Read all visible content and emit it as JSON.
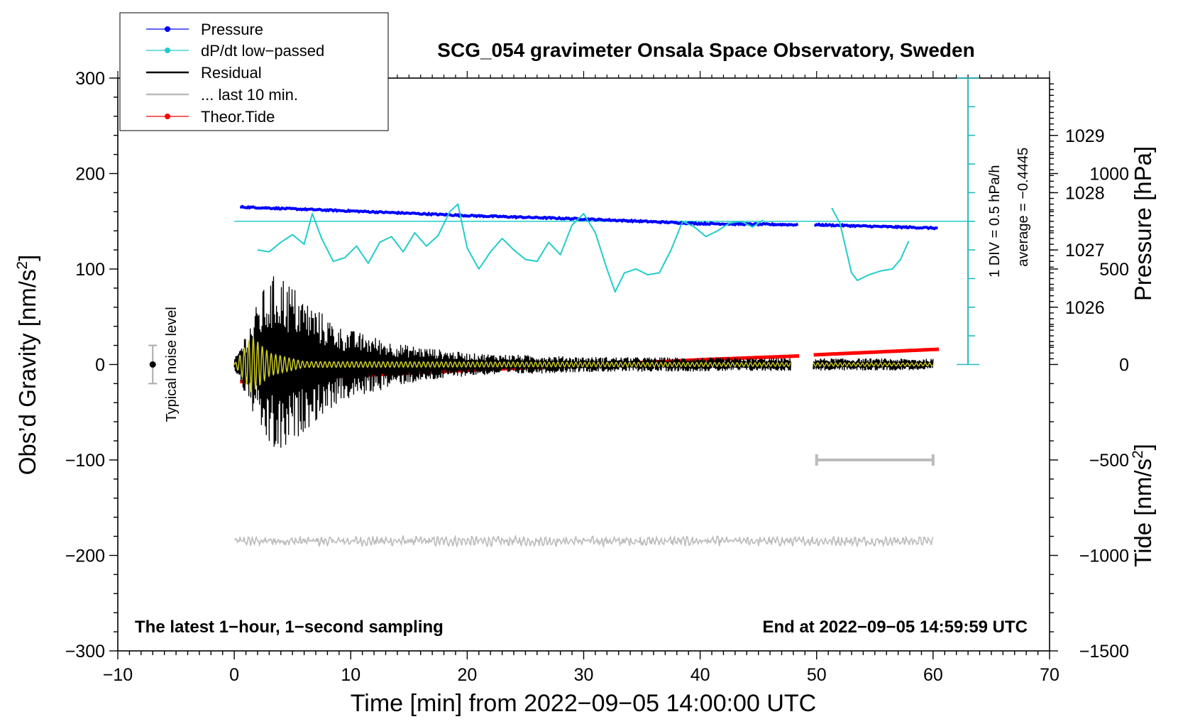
{
  "chart_data": {
    "type": "line",
    "title": "SCG_054 gravimeter Onsala Space Observatory, Sweden",
    "xlabel": "Time [min] from 2022−09−05 14:00:00 UTC",
    "ylabel_left_main": "Obs’d Gravity [nm/s",
    "ylabel_left_sup": "2",
    "ylabel_left_end": "]",
    "ylabel_right_pressure": "Pressure [hPa]",
    "ylabel_right_tide_main": "Tide [nm/s",
    "ylabel_right_tide_sup": "2",
    "ylabel_right_tide_end": "]",
    "xlim": [
      -10,
      70
    ],
    "ylim_left": [
      -300,
      300
    ],
    "ylim_tide": [
      -1500,
      1500
    ],
    "x_ticks": [
      {
        "value": -10,
        "label": "−10"
      },
      {
        "value": 0,
        "label": "0"
      },
      {
        "value": 10,
        "label": "10"
      },
      {
        "value": 20,
        "label": "20"
      },
      {
        "value": 30,
        "label": "30"
      },
      {
        "value": 40,
        "label": "40"
      },
      {
        "value": 50,
        "label": "50"
      },
      {
        "value": 60,
        "label": "60"
      },
      {
        "value": 70,
        "label": "70"
      }
    ],
    "y_ticks_left": [
      {
        "value": 300,
        "label": "300"
      },
      {
        "value": 200,
        "label": "200"
      },
      {
        "value": 100,
        "label": "100"
      },
      {
        "value": 0,
        "label": "0"
      },
      {
        "value": -100,
        "label": "−100"
      },
      {
        "value": -200,
        "label": "−200"
      },
      {
        "value": -300,
        "label": "−300"
      }
    ],
    "pressure_ticks": [
      {
        "value": 1029,
        "label": "1029"
      },
      {
        "value": 1028,
        "label": "1028"
      },
      {
        "value": 1027,
        "label": "1027"
      },
      {
        "value": 1026,
        "label": "1026"
      }
    ],
    "pressure_axis_map": {
      "hpa_at_gravity_0": 1025,
      "hpa_per_100_gravity": 1.667
    },
    "tide_ticks": [
      {
        "value": 1000,
        "label": "1000"
      },
      {
        "value": 500,
        "label": "500"
      },
      {
        "value": 0,
        "label": "0"
      },
      {
        "value": -500,
        "label": "−500"
      },
      {
        "value": -1000,
        "label": "−1000"
      },
      {
        "value": -1500,
        "label": "−1500"
      }
    ],
    "legend": {
      "position": "top-left",
      "entries": [
        {
          "label": "Pressure",
          "color": "#0000ff",
          "marker": "dot"
        },
        {
          "label": "dP/dt low−passed",
          "color": "#22cccc",
          "marker": "dot"
        },
        {
          "label": "Residual",
          "color": "#000000",
          "marker": "none"
        },
        {
          "label": "... last 10 min.",
          "color": "#bbbbbb",
          "marker": "none"
        },
        {
          "label": "Theor.Tide",
          "color": "#ff0000",
          "marker": "dot"
        }
      ]
    },
    "series": [
      {
        "name": "Pressure",
        "color": "#0000ff",
        "unit": "hPa",
        "gap": [
          48.5,
          49.8
        ],
        "x": [
          0.5,
          10,
          20,
          30,
          40,
          48.5,
          49.8,
          60.5
        ],
        "values": [
          1027.75,
          1027.68,
          1027.6,
          1027.54,
          1027.46,
          1027.44,
          1027.44,
          1027.38
        ]
      },
      {
        "name": "dP/dt low−passed",
        "color": "#22cccc",
        "axis": "gravity",
        "segments": [
          {
            "x": [
              2,
              3,
              4,
              5,
              6,
              6.7,
              7.5,
              8.5,
              9.5,
              10.5,
              11.5,
              12.5,
              13.5,
              14.5,
              15.5,
              16.5,
              17.5,
              18.5,
              19.2,
              20,
              21,
              22,
              23,
              24,
              25,
              26,
              27,
              28,
              29,
              30,
              31,
              32,
              32.7,
              33.5,
              34.5,
              35.5,
              36.5,
              37.5,
              38.5,
              39.5,
              40.5,
              41.5,
              42.5,
              43.5,
              44.5,
              45.5
            ],
            "values": [
              120,
              118,
              128,
              136,
              126,
              158,
              132,
              108,
              112,
              124,
              106,
              128,
              134,
              118,
              138,
              124,
              135,
              160,
              168,
              122,
              100,
              118,
              132,
              120,
              110,
              108,
              128,
              115,
              146,
              158,
              138,
              100,
              76,
              96,
              100,
              94,
              96,
              120,
              150,
              144,
              134,
              140,
              148,
              150,
              144,
              152
            ]
          },
          {
            "x": [
              51.3,
              52,
              53,
              53.5,
              54.5,
              55.5,
              56.5,
              57.2,
              58
            ],
            "values": [
              164,
              148,
              96,
              88,
              94,
              98,
              100,
              110,
              132
            ]
          }
        ]
      },
      {
        "name": "dP/dt average line",
        "color": "#22cccc",
        "x": [
          0,
          63
        ],
        "values": [
          150,
          150
        ]
      },
      {
        "name": "Residual",
        "color": "#000000",
        "axis": "gravity",
        "range": [
          0,
          60
        ],
        "gap": [
          47.8,
          49.7
        ],
        "envelope": [
          {
            "x": 0,
            "amp": 5
          },
          {
            "x": 1.2,
            "amp": 40
          },
          {
            "x": 2.5,
            "amp": 80
          },
          {
            "x": 3.8,
            "amp": 100
          },
          {
            "x": 6,
            "amp": 70
          },
          {
            "x": 9,
            "amp": 40
          },
          {
            "x": 14,
            "amp": 22
          },
          {
            "x": 20,
            "amp": 12
          },
          {
            "x": 30,
            "amp": 8
          },
          {
            "x": 60,
            "amp": 6
          }
        ]
      },
      {
        "name": "Residual low−passed",
        "color": "#cccc22",
        "axis": "gravity",
        "envelope": [
          {
            "x": 0,
            "amp": 0
          },
          {
            "x": 1.5,
            "amp": 30
          },
          {
            "x": 3,
            "amp": 12
          },
          {
            "x": 6,
            "amp": 3
          },
          {
            "x": 60,
            "amp": 1.5
          }
        ]
      },
      {
        "name": "Theor.Tide",
        "color": "#ff0000",
        "unit": "nm/s2",
        "gap": [
          48.6,
          49.6
        ],
        "x": [
          0.5,
          10,
          20,
          30,
          40,
          48.6,
          49.6,
          60.5
        ],
        "values": [
          -90,
          -60,
          -30,
          -5,
          25,
          45,
          50,
          80
        ]
      },
      {
        "name": "... last 10 min.",
        "color": "#bbbbbb",
        "axis": "gravity",
        "baseline": -185,
        "amp": 4,
        "range": [
          0,
          60
        ]
      }
    ],
    "last10_bar": {
      "x_start": 50,
      "x_end": 60,
      "y": -100
    },
    "scale_bar": {
      "x": 63,
      "from": 0,
      "to": 300,
      "label": "1 DIV = 0.5 hPa/h",
      "average_label": "average = −0.4445"
    },
    "noise_marker": {
      "x": -7,
      "center": 0,
      "half_range": 20,
      "label": "Typical noise level"
    },
    "annotation_left": "The latest 1−hour, 1−second sampling",
    "annotation_right": "End at 2022−09−05 14:59:59 UTC"
  }
}
